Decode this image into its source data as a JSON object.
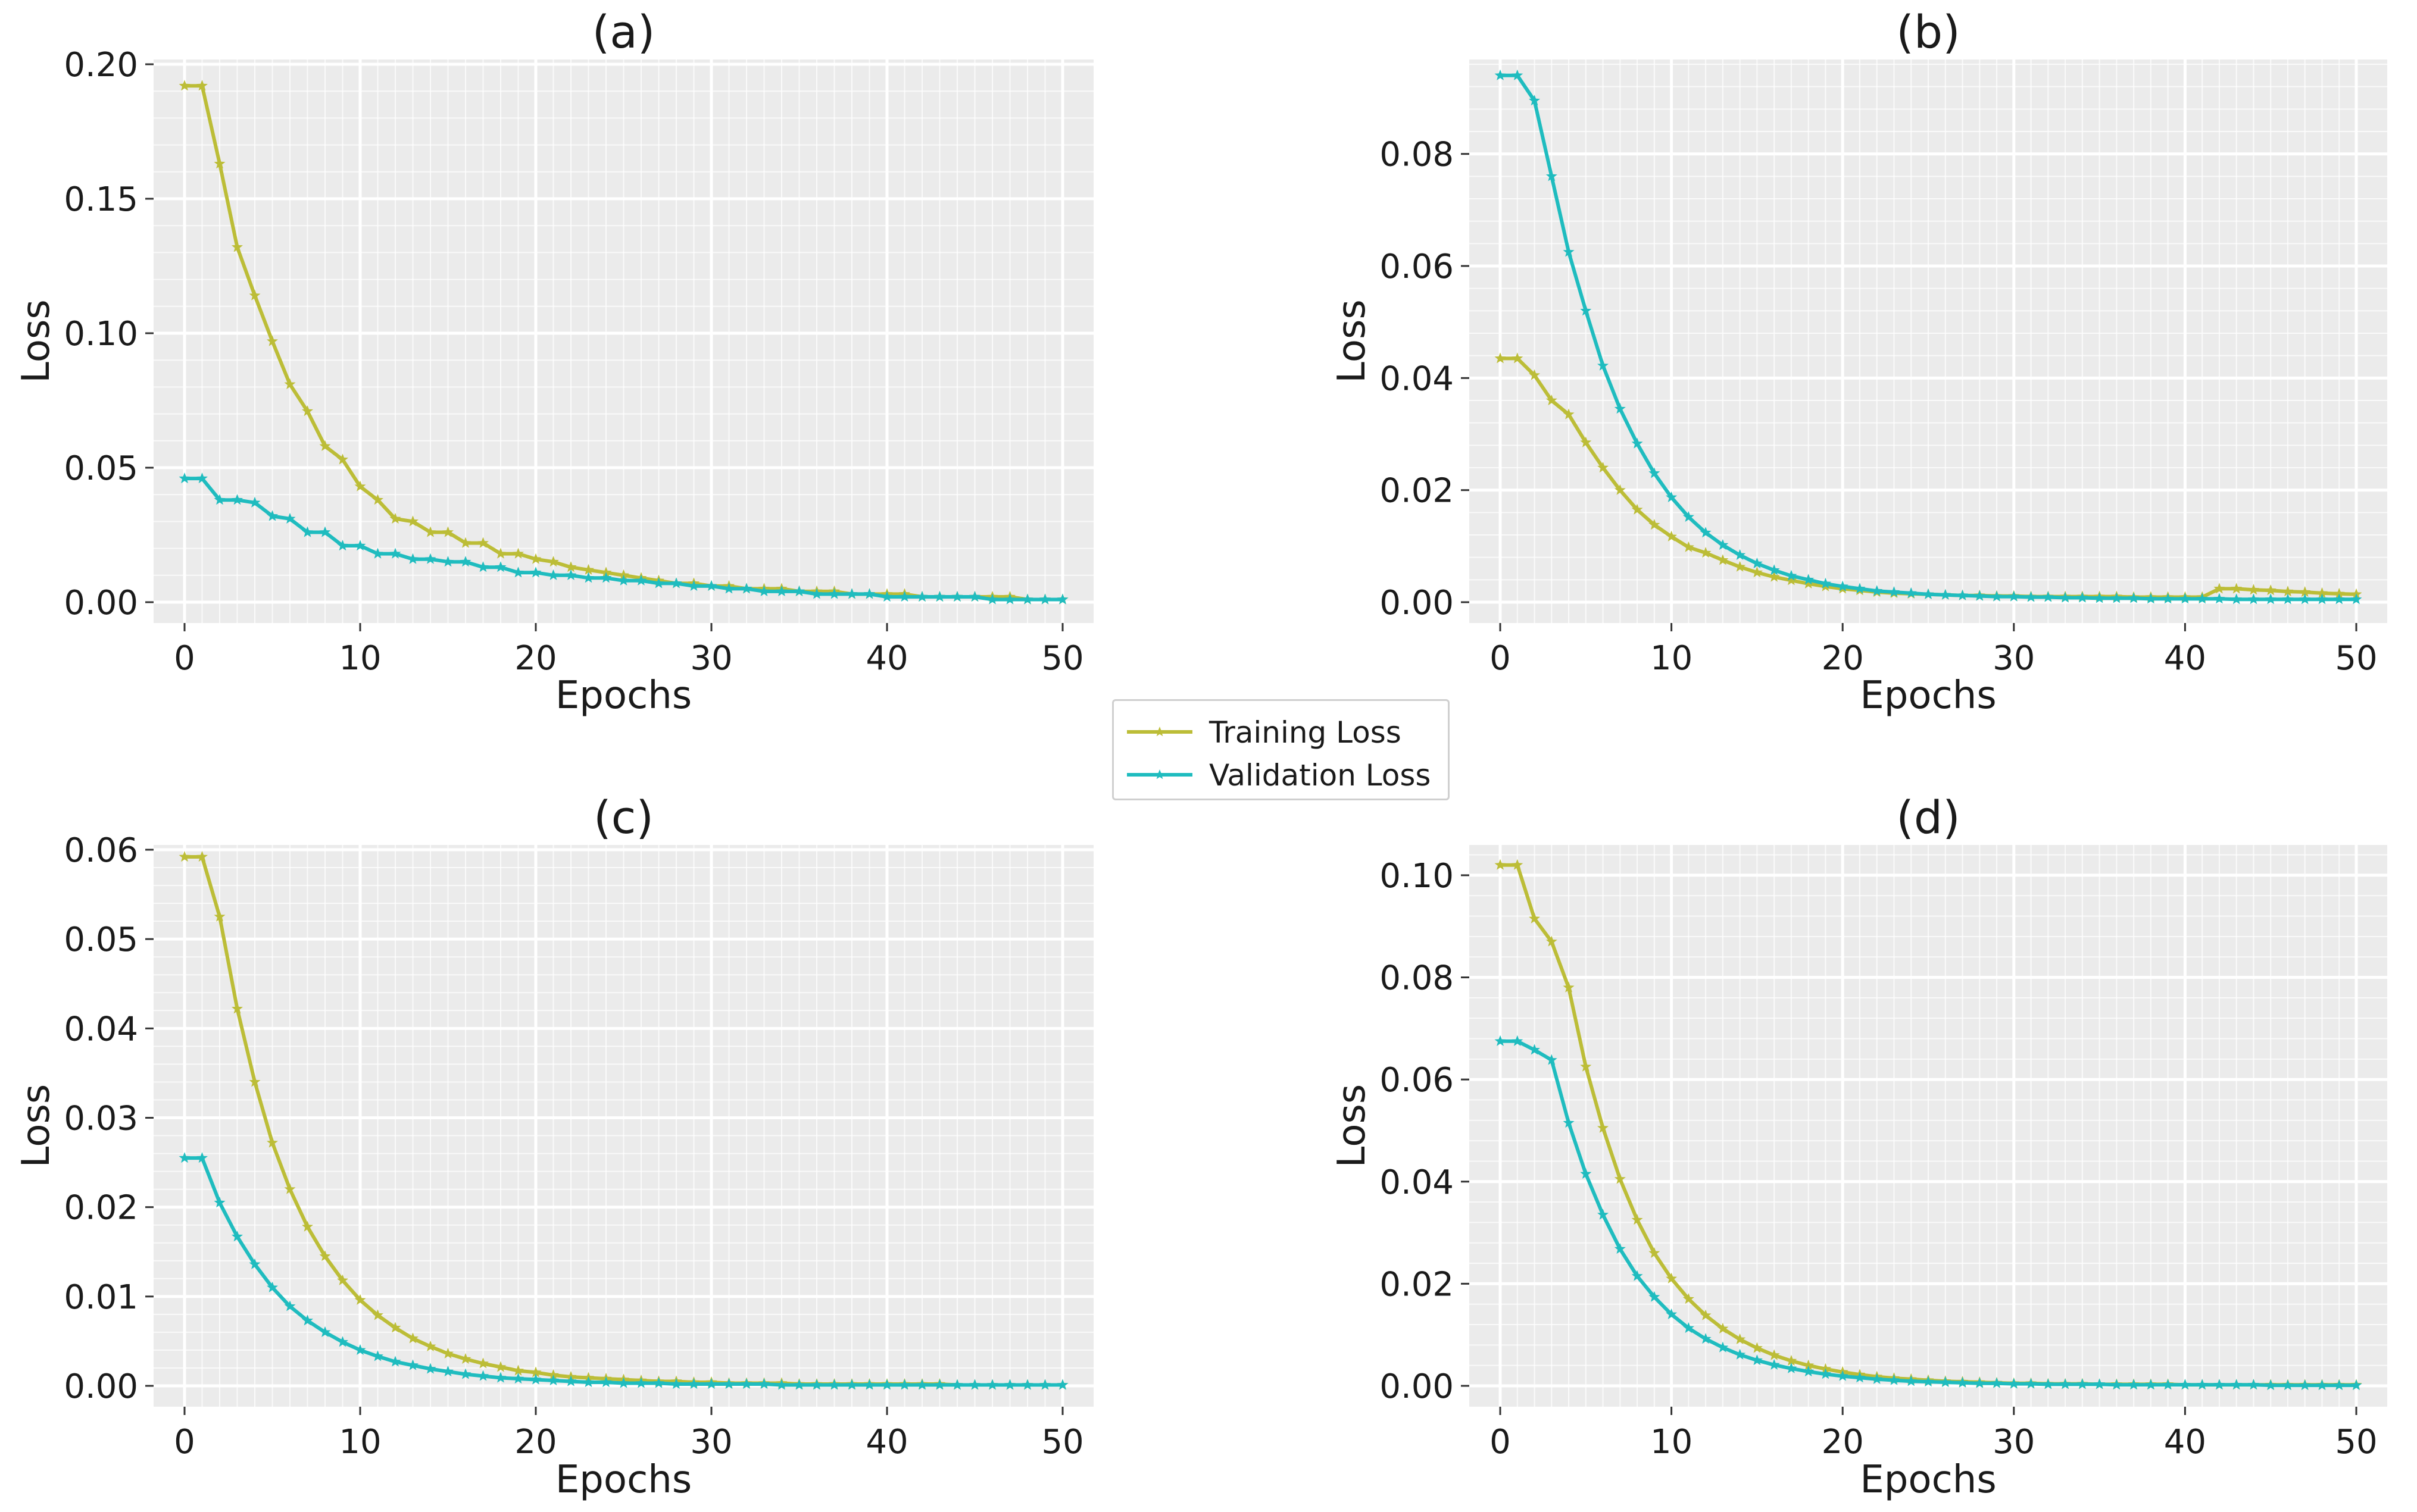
{
  "colors": {
    "training": "#bcbd37",
    "validation": "#1fbcbf",
    "panel_bg": "#ebebeb",
    "grid": "#ffffff"
  },
  "legend": {
    "training_label": "Training Loss",
    "validation_label": "Validation Loss"
  },
  "chart_data": [
    {
      "type": "line",
      "title": "(a)",
      "xlabel": "Epochs",
      "ylabel": "Loss",
      "xlim": [
        0,
        50
      ],
      "ylim": [
        0,
        0.2
      ],
      "xticks": [
        0,
        10,
        20,
        30,
        40,
        50
      ],
      "xtick_labels": [
        "0",
        "10",
        "20",
        "30",
        "40",
        "50"
      ],
      "yticks": [
        0,
        0.05,
        0.1,
        0.15,
        0.2
      ],
      "ytick_labels": [
        "0.00",
        "0.05",
        "0.10",
        "0.15",
        "0.20"
      ],
      "series": [
        {
          "name": "Training Loss",
          "values": [
            0.192,
            0.192,
            0.163,
            0.132,
            0.114,
            0.097,
            0.081,
            0.071,
            0.058,
            0.053,
            0.043,
            0.038,
            0.031,
            0.03,
            0.026,
            0.026,
            0.022,
            0.022,
            0.018,
            0.018,
            0.016,
            0.015,
            0.013,
            0.012,
            0.011,
            0.01,
            0.009,
            0.008,
            0.007,
            0.007,
            0.006,
            0.006,
            0.005,
            0.005,
            0.005,
            0.004,
            0.004,
            0.004,
            0.003,
            0.003,
            0.003,
            0.003,
            0.002,
            0.002,
            0.002,
            0.002,
            0.002,
            0.002,
            0.001,
            0.001,
            0.001
          ]
        },
        {
          "name": "Validation Loss",
          "values": [
            0.046,
            0.046,
            0.038,
            0.038,
            0.037,
            0.032,
            0.031,
            0.026,
            0.026,
            0.021,
            0.021,
            0.018,
            0.018,
            0.016,
            0.016,
            0.015,
            0.015,
            0.013,
            0.013,
            0.011,
            0.011,
            0.01,
            0.01,
            0.009,
            0.009,
            0.008,
            0.008,
            0.007,
            0.007,
            0.006,
            0.006,
            0.005,
            0.005,
            0.004,
            0.004,
            0.004,
            0.003,
            0.003,
            0.003,
            0.003,
            0.002,
            0.002,
            0.002,
            0.002,
            0.002,
            0.002,
            0.001,
            0.001,
            0.001,
            0.001,
            0.001
          ]
        }
      ]
    },
    {
      "type": "line",
      "title": "(b)",
      "xlabel": "Epochs",
      "ylabel": "Loss",
      "xlim": [
        0,
        50
      ],
      "ylim": [
        0,
        0.096
      ],
      "xticks": [
        0,
        10,
        20,
        30,
        40,
        50
      ],
      "xtick_labels": [
        "0",
        "10",
        "20",
        "30",
        "40",
        "50"
      ],
      "yticks": [
        0,
        0.02,
        0.04,
        0.06,
        0.08
      ],
      "ytick_labels": [
        "0.00",
        "0.02",
        "0.04",
        "0.06",
        "0.08"
      ],
      "series": [
        {
          "name": "Training Loss",
          "values": [
            0.0435,
            0.0435,
            0.0405,
            0.036,
            0.0335,
            0.0285,
            0.024,
            0.02,
            0.0165,
            0.0138,
            0.0117,
            0.0098,
            0.0088,
            0.0075,
            0.0063,
            0.0053,
            0.0045,
            0.0039,
            0.0033,
            0.0028,
            0.0024,
            0.0021,
            0.0018,
            0.0016,
            0.0015,
            0.0014,
            0.0013,
            0.0012,
            0.0012,
            0.0011,
            0.0011,
            0.001,
            0.001,
            0.001,
            0.001,
            0.001,
            0.001,
            0.0009,
            0.0009,
            0.0009,
            0.0009,
            0.0009,
            0.0024,
            0.0024,
            0.0022,
            0.0021,
            0.0019,
            0.0018,
            0.0016,
            0.0015,
            0.0014
          ]
        },
        {
          "name": "Validation Loss",
          "values": [
            0.094,
            0.094,
            0.0895,
            0.076,
            0.0625,
            0.052,
            0.0422,
            0.0345,
            0.0283,
            0.023,
            0.0187,
            0.0152,
            0.0124,
            0.0102,
            0.0084,
            0.0069,
            0.0057,
            0.0047,
            0.004,
            0.0033,
            0.0028,
            0.0024,
            0.002,
            0.0018,
            0.0016,
            0.0014,
            0.0013,
            0.0012,
            0.0011,
            0.001,
            0.001,
            0.0009,
            0.0009,
            0.0008,
            0.0008,
            0.0007,
            0.0007,
            0.0007,
            0.0006,
            0.0006,
            0.0006,
            0.0006,
            0.0006,
            0.0005,
            0.0005,
            0.0005,
            0.0005,
            0.0005,
            0.0005,
            0.0005,
            0.0005
          ]
        }
      ]
    },
    {
      "type": "line",
      "title": "(c)",
      "xlabel": "Epochs",
      "ylabel": "Loss",
      "xlim": [
        0,
        50
      ],
      "ylim": [
        0,
        0.06
      ],
      "xticks": [
        0,
        10,
        20,
        30,
        40,
        50
      ],
      "xtick_labels": [
        "0",
        "10",
        "20",
        "30",
        "40",
        "50"
      ],
      "yticks": [
        0,
        0.01,
        0.02,
        0.03,
        0.04,
        0.05,
        0.06
      ],
      "ytick_labels": [
        "0.00",
        "0.01",
        "0.02",
        "0.03",
        "0.04",
        "0.05",
        "0.06"
      ],
      "series": [
        {
          "name": "Training Loss",
          "values": [
            0.0592,
            0.0592,
            0.0525,
            0.0422,
            0.034,
            0.0272,
            0.022,
            0.0178,
            0.0145,
            0.0118,
            0.0096,
            0.0079,
            0.0065,
            0.0053,
            0.0044,
            0.0036,
            0.003,
            0.0025,
            0.0021,
            0.0017,
            0.0015,
            0.0012,
            0.001,
            0.0009,
            0.0008,
            0.0007,
            0.0006,
            0.0005,
            0.0005,
            0.0004,
            0.0004,
            0.0003,
            0.0003,
            0.0003,
            0.0003,
            0.0002,
            0.0002,
            0.0002,
            0.0002,
            0.0002,
            0.0002,
            0.0002,
            0.0002,
            0.0002,
            0.0001,
            0.0001,
            0.0001,
            0.0001,
            0.0001,
            0.0001,
            0.0001
          ]
        },
        {
          "name": "Validation Loss",
          "values": [
            0.0255,
            0.0255,
            0.0205,
            0.0167,
            0.0136,
            0.011,
            0.0089,
            0.0073,
            0.006,
            0.0049,
            0.004,
            0.0033,
            0.0027,
            0.0023,
            0.0019,
            0.0016,
            0.0013,
            0.0011,
            0.0009,
            0.0008,
            0.0007,
            0.0006,
            0.0005,
            0.0004,
            0.0004,
            0.0003,
            0.0003,
            0.0003,
            0.0002,
            0.0002,
            0.0002,
            0.0002,
            0.0002,
            0.0002,
            0.0001,
            0.0001,
            0.0001,
            0.0001,
            0.0001,
            0.0001,
            0.0001,
            0.0001,
            0.0001,
            0.0001,
            0.0001,
            0.0001,
            0.0001,
            0.0001,
            0.0001,
            0.0001,
            0.0001
          ]
        }
      ]
    },
    {
      "type": "line",
      "title": "(d)",
      "xlabel": "Epochs",
      "ylabel": "Loss",
      "xlim": [
        0,
        50
      ],
      "ylim": [
        0,
        0.105
      ],
      "xticks": [
        0,
        10,
        20,
        30,
        40,
        50
      ],
      "xtick_labels": [
        "0",
        "10",
        "20",
        "30",
        "40",
        "50"
      ],
      "yticks": [
        0,
        0.02,
        0.04,
        0.06,
        0.08,
        0.1
      ],
      "ytick_labels": [
        "0.00",
        "0.02",
        "0.04",
        "0.06",
        "0.08",
        "0.10"
      ],
      "series": [
        {
          "name": "Training Loss",
          "values": [
            0.102,
            0.102,
            0.0915,
            0.087,
            0.078,
            0.0625,
            0.0505,
            0.0405,
            0.0325,
            0.026,
            0.021,
            0.017,
            0.0138,
            0.0112,
            0.0091,
            0.0074,
            0.006,
            0.0049,
            0.004,
            0.0033,
            0.0027,
            0.0022,
            0.0018,
            0.0015,
            0.0013,
            0.0011,
            0.0009,
            0.0008,
            0.0007,
            0.0006,
            0.0005,
            0.0005,
            0.0004,
            0.0004,
            0.0004,
            0.0003,
            0.0003,
            0.0003,
            0.0003,
            0.0003,
            0.0002,
            0.0002,
            0.0002,
            0.0002,
            0.0002,
            0.0002,
            0.0002,
            0.0002,
            0.0002,
            0.0002,
            0.0002
          ]
        },
        {
          "name": "Validation Loss",
          "values": [
            0.0675,
            0.0675,
            0.0658,
            0.0638,
            0.0515,
            0.0415,
            0.0335,
            0.0268,
            0.0215,
            0.0174,
            0.014,
            0.0113,
            0.0092,
            0.0075,
            0.0061,
            0.005,
            0.0041,
            0.0034,
            0.0028,
            0.0023,
            0.0019,
            0.0016,
            0.0013,
            0.0011,
            0.0009,
            0.0008,
            0.0007,
            0.0006,
            0.0005,
            0.0005,
            0.0004,
            0.0004,
            0.0003,
            0.0003,
            0.0003,
            0.0003,
            0.0002,
            0.0002,
            0.0002,
            0.0002,
            0.0002,
            0.0002,
            0.0002,
            0.0002,
            0.0002,
            0.0001,
            0.0001,
            0.0001,
            0.0001,
            0.0001,
            0.0001
          ]
        }
      ]
    }
  ]
}
